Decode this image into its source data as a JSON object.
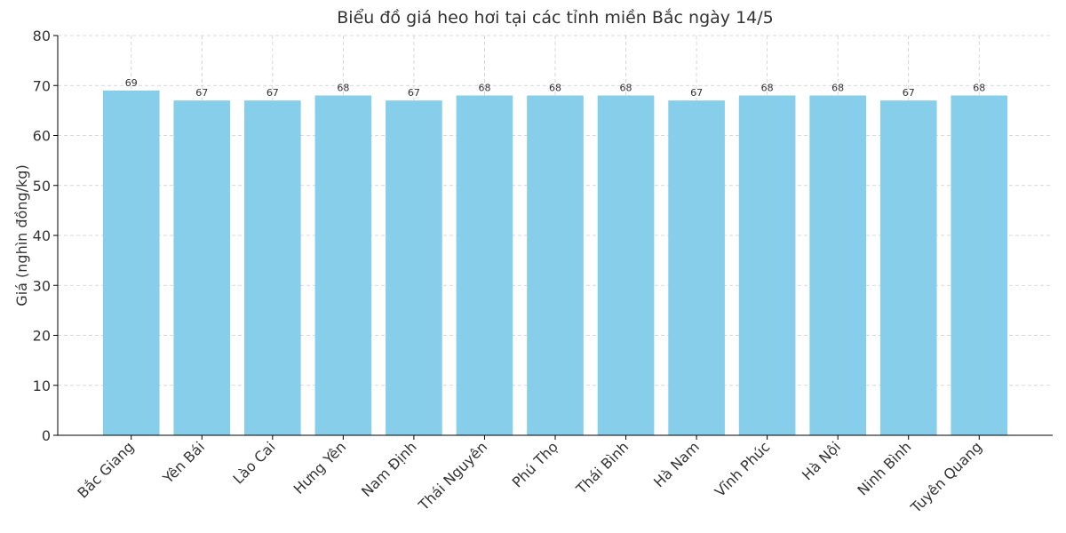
{
  "chart_data": {
    "type": "bar",
    "title": "Biểu đồ giá heo hơi tại các tỉnh miền Bắc ngày 14/5",
    "y_label": "Giá (nghìn đồng/kg)",
    "categories": [
      "Bắc Giang",
      "Yên Bái",
      "Lào Cai",
      "Hưng Yên",
      "Nam Định",
      "Thái Nguyên",
      "Phú Thọ",
      "Thái Bình",
      "Hà Nam",
      "Vĩnh Phúc",
      "Hà Nội",
      "Ninh Bình",
      "Tuyên Quang"
    ],
    "values": [
      69,
      67,
      67,
      68,
      67,
      68,
      68,
      68,
      67,
      68,
      68,
      67,
      68
    ],
    "color": "#87ceeb",
    "ylim": [
      0,
      80
    ],
    "yticks": [
      0,
      10,
      20,
      30,
      40,
      50,
      60,
      70,
      80
    ],
    "grid": true
  }
}
